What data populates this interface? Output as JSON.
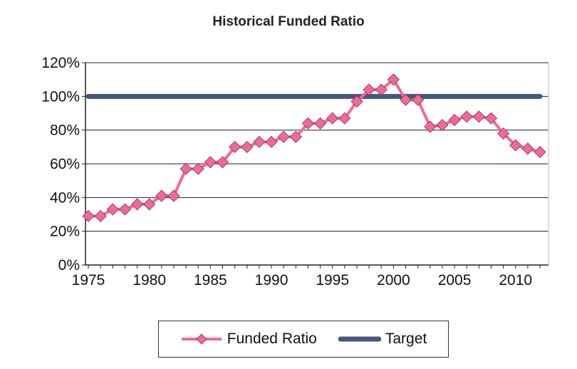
{
  "chart_data": {
    "type": "line",
    "title": "Historical Funded Ratio",
    "xlabel": "",
    "ylabel": "",
    "ylim": [
      0,
      120
    ],
    "xlim": [
      1975,
      2012
    ],
    "yticks": [
      "0%",
      "20%",
      "40%",
      "60%",
      "80%",
      "100%",
      "120%"
    ],
    "xticks": [
      "1975",
      "1980",
      "1985",
      "1990",
      "1995",
      "2000",
      "2005",
      "2010"
    ],
    "grid": true,
    "legend_position": "bottom",
    "x": [
      1975,
      1976,
      1977,
      1978,
      1979,
      1980,
      1981,
      1982,
      1983,
      1984,
      1985,
      1986,
      1987,
      1988,
      1989,
      1990,
      1991,
      1992,
      1993,
      1994,
      1995,
      1996,
      1997,
      1998,
      1999,
      2000,
      2001,
      2002,
      2003,
      2004,
      2005,
      2006,
      2007,
      2008,
      2009,
      2010,
      2011,
      2012
    ],
    "series": [
      {
        "name": "Funded Ratio",
        "color": "#f06a92",
        "marker": "diamond",
        "values": [
          29,
          29,
          33,
          33,
          36,
          36,
          41,
          41,
          57,
          57,
          61,
          61,
          70,
          70,
          73,
          73,
          76,
          76,
          84,
          84,
          87,
          87,
          97,
          104,
          104,
          110,
          98,
          98,
          82,
          83,
          86,
          88,
          88,
          87,
          78,
          71,
          69,
          67
        ]
      },
      {
        "name": "Target",
        "color": "#44577e",
        "marker": "none",
        "values": [
          100,
          100,
          100,
          100,
          100,
          100,
          100,
          100,
          100,
          100,
          100,
          100,
          100,
          100,
          100,
          100,
          100,
          100,
          100,
          100,
          100,
          100,
          100,
          100,
          100,
          100,
          100,
          100,
          100,
          100,
          100,
          100,
          100,
          100,
          100,
          100,
          100,
          100
        ]
      }
    ]
  }
}
